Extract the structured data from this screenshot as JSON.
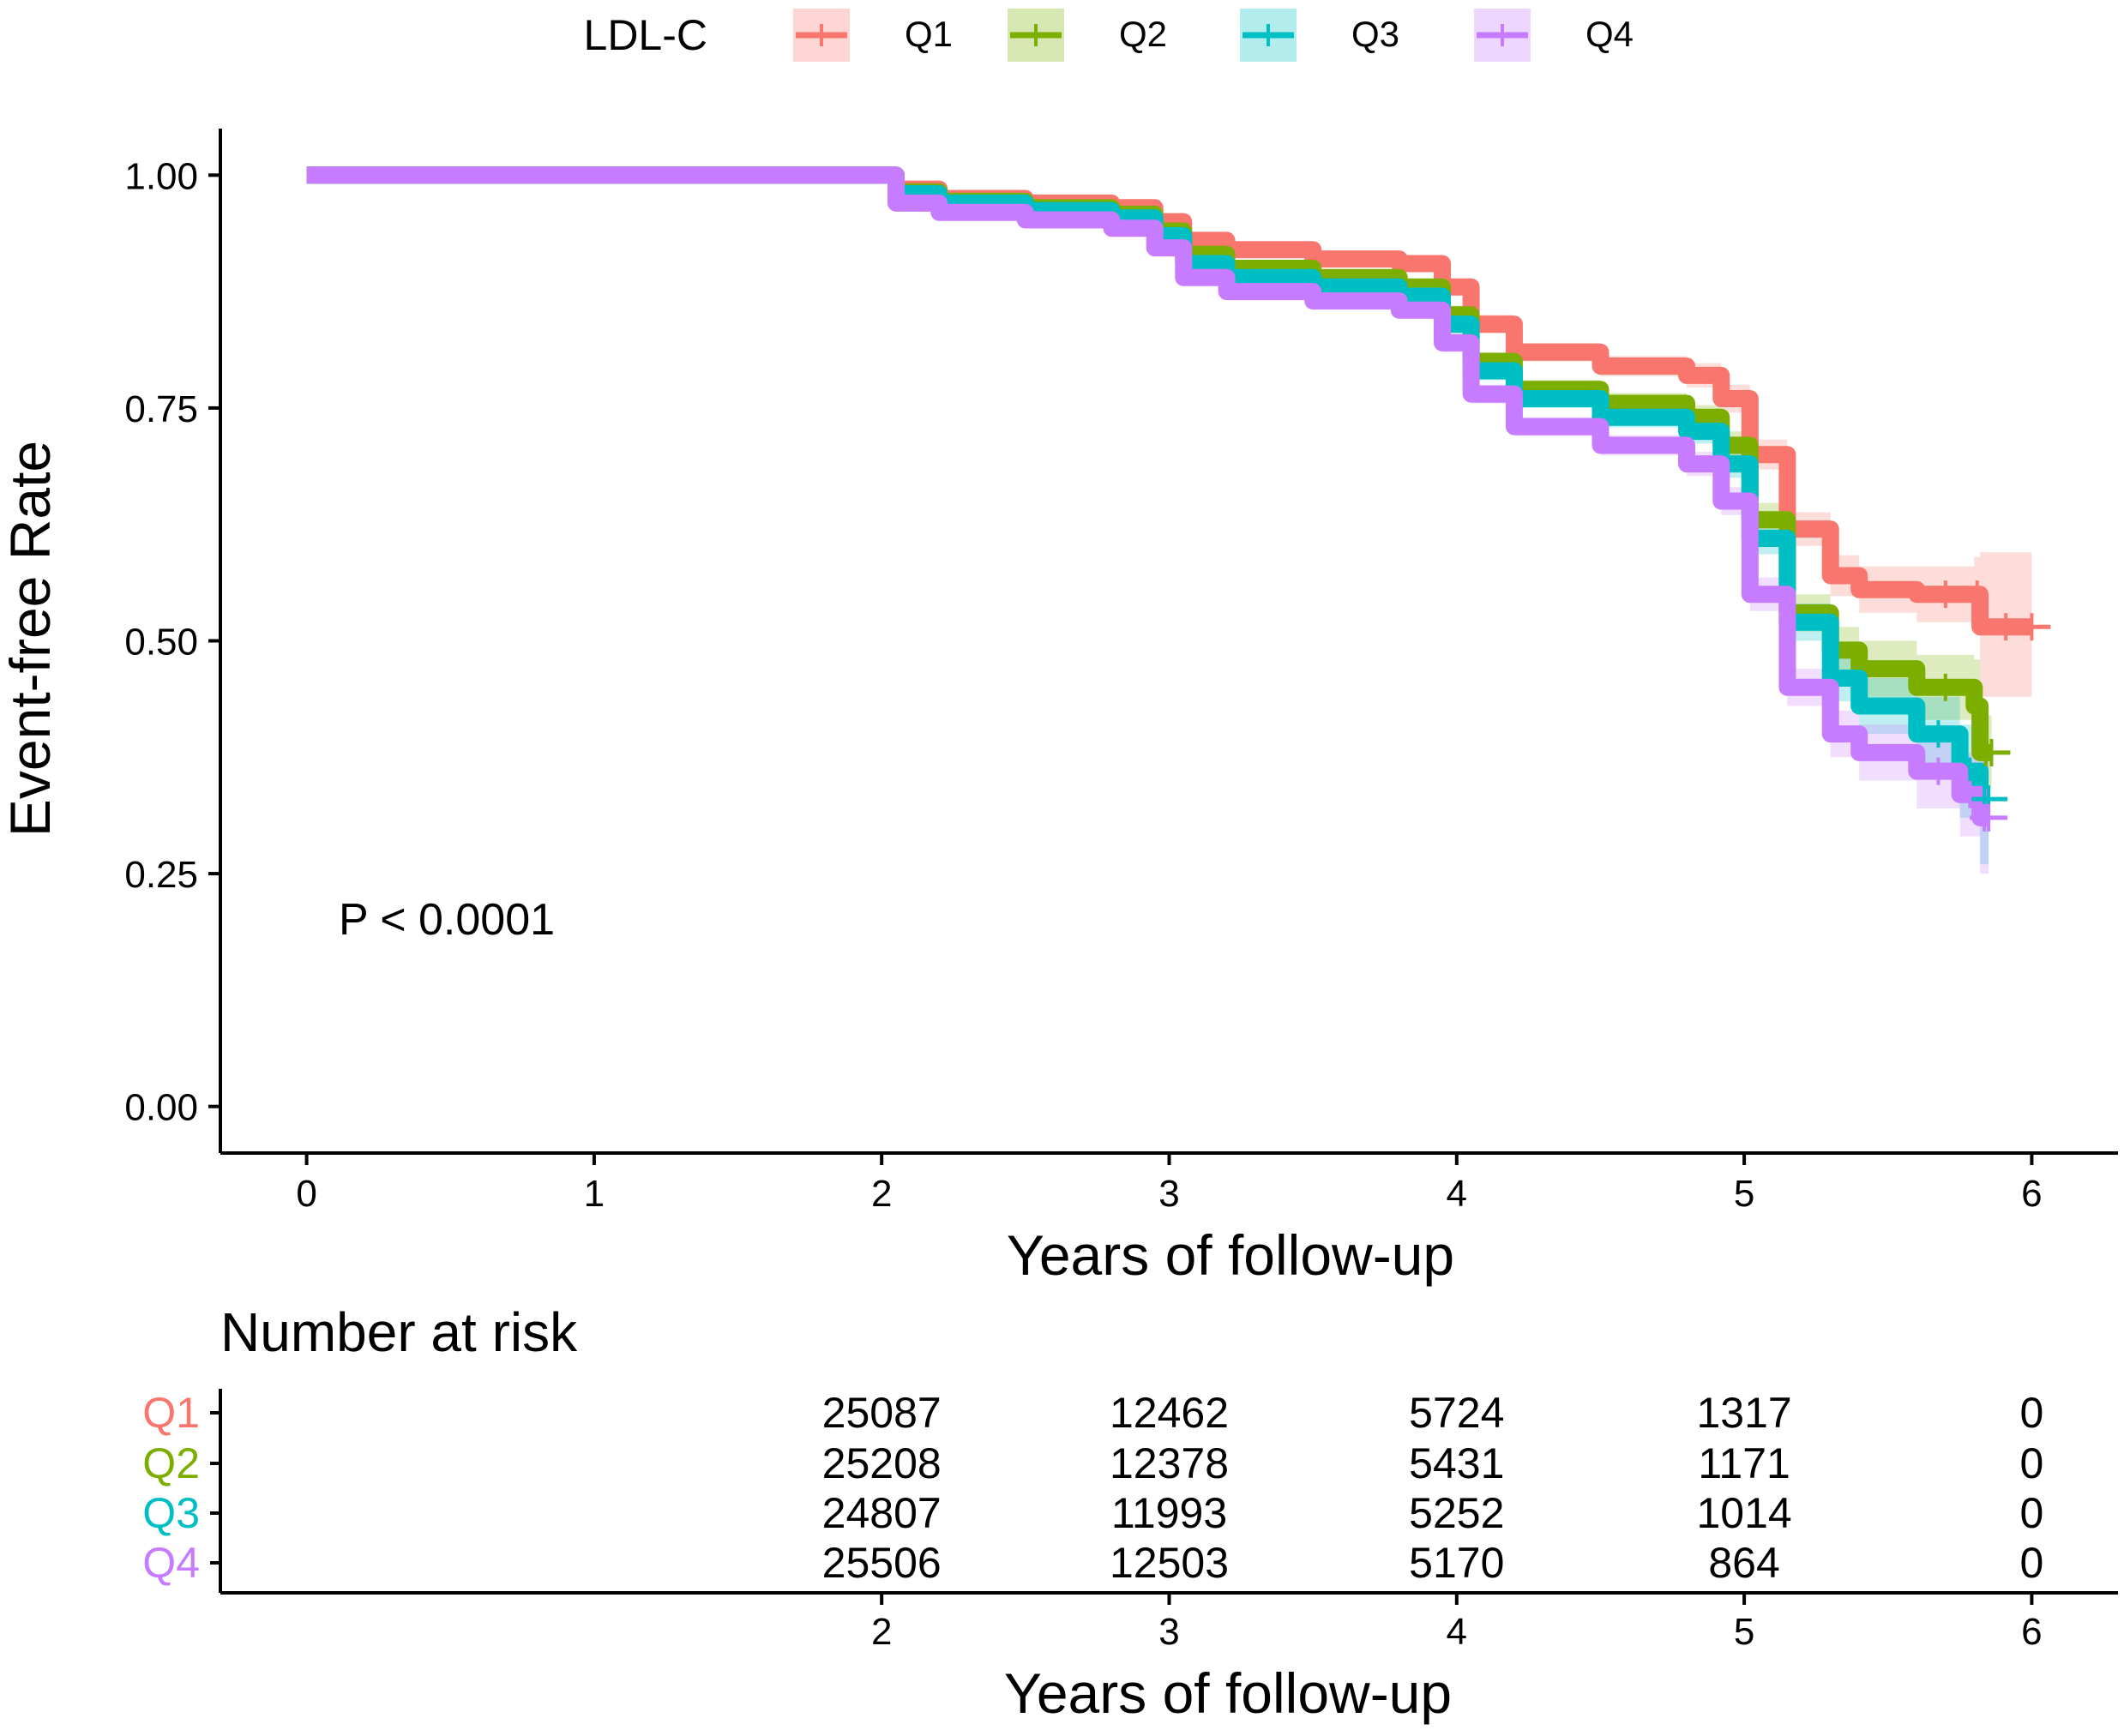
{
  "legend": {
    "title": "LDL-C",
    "items": [
      {
        "label": "Q1",
        "color": "#F8766D"
      },
      {
        "label": "Q2",
        "color": "#7CAE00"
      },
      {
        "label": "Q3",
        "color": "#00BFC4"
      },
      {
        "label": "Q4",
        "color": "#C77CFF"
      }
    ]
  },
  "annotation": "P < 0.0001",
  "chart_data": [
    {
      "type": "line",
      "subtype": "kaplan-meier",
      "title": "",
      "xlabel": "Years of follow-up",
      "ylabel": "Event-free Rate",
      "xlim": [
        -0.3,
        6.3
      ],
      "ylim": [
        -0.05,
        1.05
      ],
      "x_ticks": [
        "0",
        "1",
        "2",
        "3",
        "4",
        "5",
        "6"
      ],
      "y_ticks": [
        "0.00",
        "0.25",
        "0.50",
        "0.75",
        "1.00"
      ],
      "legend_position": "top",
      "series": [
        {
          "name": "Q1",
          "color": "#F8766D",
          "x": [
            0,
            2.0,
            2.05,
            2.2,
            2.5,
            2.8,
            2.95,
            3.05,
            3.2,
            3.5,
            3.8,
            3.95,
            4.05,
            4.2,
            4.5,
            4.8,
            4.92,
            5.02,
            5.15,
            5.3,
            5.4,
            5.6,
            5.8,
            5.82,
            6.0
          ],
          "y": [
            1.0,
            1.0,
            0.985,
            0.975,
            0.97,
            0.965,
            0.95,
            0.93,
            0.92,
            0.91,
            0.905,
            0.88,
            0.84,
            0.81,
            0.795,
            0.785,
            0.76,
            0.7,
            0.62,
            0.57,
            0.555,
            0.55,
            0.55,
            0.515,
            0.515
          ],
          "ci_low": [
            1.0,
            1.0,
            0.983,
            0.972,
            0.966,
            0.96,
            0.944,
            0.924,
            0.914,
            0.903,
            0.897,
            0.871,
            0.83,
            0.8,
            0.784,
            0.772,
            0.745,
            0.684,
            0.602,
            0.548,
            0.53,
            0.52,
            0.51,
            0.44,
            0.44
          ],
          "ci_high": [
            1.0,
            1.0,
            0.987,
            0.978,
            0.974,
            0.97,
            0.956,
            0.936,
            0.926,
            0.917,
            0.913,
            0.889,
            0.85,
            0.82,
            0.806,
            0.798,
            0.775,
            0.716,
            0.638,
            0.592,
            0.58,
            0.58,
            0.59,
            0.595,
            0.595
          ]
        },
        {
          "name": "Q2",
          "color": "#7CAE00",
          "x": [
            0,
            2.0,
            2.05,
            2.2,
            2.5,
            2.8,
            2.95,
            3.05,
            3.2,
            3.5,
            3.8,
            3.95,
            4.05,
            4.2,
            4.5,
            4.8,
            4.92,
            5.02,
            5.15,
            5.3,
            5.4,
            5.6,
            5.8,
            5.82,
            5.86
          ],
          "y": [
            1.0,
            1.0,
            0.982,
            0.972,
            0.965,
            0.958,
            0.94,
            0.915,
            0.9,
            0.89,
            0.88,
            0.85,
            0.8,
            0.77,
            0.755,
            0.74,
            0.71,
            0.63,
            0.53,
            0.49,
            0.47,
            0.45,
            0.43,
            0.38,
            0.38
          ],
          "ci_low": [
            1.0,
            1.0,
            0.98,
            0.969,
            0.961,
            0.953,
            0.934,
            0.909,
            0.893,
            0.882,
            0.871,
            0.84,
            0.79,
            0.76,
            0.744,
            0.727,
            0.695,
            0.612,
            0.51,
            0.465,
            0.44,
            0.415,
            0.39,
            0.34,
            0.34
          ],
          "ci_high": [
            1.0,
            1.0,
            0.984,
            0.975,
            0.969,
            0.963,
            0.946,
            0.921,
            0.907,
            0.898,
            0.889,
            0.86,
            0.81,
            0.78,
            0.766,
            0.753,
            0.725,
            0.648,
            0.55,
            0.515,
            0.5,
            0.485,
            0.48,
            0.42,
            0.42
          ]
        },
        {
          "name": "Q3",
          "color": "#00BFC4",
          "x": [
            0,
            2.0,
            2.05,
            2.2,
            2.5,
            2.8,
            2.95,
            3.05,
            3.2,
            3.5,
            3.8,
            3.95,
            4.05,
            4.2,
            4.5,
            4.8,
            4.92,
            5.02,
            5.15,
            5.3,
            5.4,
            5.6,
            5.75,
            5.82,
            5.85
          ],
          "y": [
            1.0,
            1.0,
            0.98,
            0.97,
            0.962,
            0.954,
            0.935,
            0.905,
            0.89,
            0.88,
            0.87,
            0.84,
            0.79,
            0.76,
            0.74,
            0.725,
            0.69,
            0.61,
            0.52,
            0.46,
            0.43,
            0.4,
            0.36,
            0.33,
            0.33
          ],
          "ci_low": [
            1.0,
            1.0,
            0.978,
            0.967,
            0.958,
            0.949,
            0.929,
            0.899,
            0.883,
            0.872,
            0.861,
            0.83,
            0.78,
            0.75,
            0.729,
            0.712,
            0.675,
            0.593,
            0.5,
            0.435,
            0.4,
            0.36,
            0.31,
            0.26,
            0.26
          ],
          "ci_high": [
            1.0,
            1.0,
            0.982,
            0.973,
            0.966,
            0.959,
            0.941,
            0.911,
            0.897,
            0.888,
            0.879,
            0.85,
            0.8,
            0.77,
            0.751,
            0.738,
            0.705,
            0.627,
            0.54,
            0.485,
            0.46,
            0.44,
            0.41,
            0.4,
            0.4
          ]
        },
        {
          "name": "Q4",
          "color": "#C77CFF",
          "x": [
            0,
            2.0,
            2.05,
            2.2,
            2.5,
            2.8,
            2.95,
            3.05,
            3.2,
            3.5,
            3.8,
            3.95,
            4.05,
            4.2,
            4.5,
            4.8,
            4.92,
            5.02,
            5.15,
            5.3,
            5.4,
            5.6,
            5.75,
            5.82,
            5.85
          ],
          "y": [
            1.0,
            1.0,
            0.97,
            0.96,
            0.952,
            0.943,
            0.922,
            0.89,
            0.875,
            0.865,
            0.855,
            0.82,
            0.765,
            0.73,
            0.71,
            0.69,
            0.65,
            0.55,
            0.45,
            0.4,
            0.38,
            0.36,
            0.335,
            0.31,
            0.31
          ],
          "ci_low": [
            1.0,
            1.0,
            0.968,
            0.957,
            0.948,
            0.938,
            0.916,
            0.884,
            0.868,
            0.857,
            0.846,
            0.81,
            0.755,
            0.72,
            0.699,
            0.677,
            0.635,
            0.532,
            0.43,
            0.375,
            0.35,
            0.32,
            0.29,
            0.25,
            0.25
          ],
          "ci_high": [
            1.0,
            1.0,
            0.972,
            0.963,
            0.956,
            0.948,
            0.928,
            0.896,
            0.882,
            0.873,
            0.864,
            0.83,
            0.775,
            0.74,
            0.721,
            0.703,
            0.665,
            0.568,
            0.47,
            0.425,
            0.41,
            0.4,
            0.38,
            0.37,
            0.37
          ]
        }
      ]
    },
    {
      "type": "table",
      "title": "Number at risk",
      "xlabel": "Years of follow-up",
      "columns": [
        "2",
        "3",
        "4",
        "5",
        "6"
      ],
      "rows": [
        {
          "label": "Q1",
          "color": "#F8766D",
          "values": [
            "25087",
            "12462",
            "5724",
            "1317",
            "0"
          ]
        },
        {
          "label": "Q2",
          "color": "#7CAE00",
          "values": [
            "25208",
            "12378",
            "5431",
            "1171",
            "0"
          ]
        },
        {
          "label": "Q3",
          "color": "#00BFC4",
          "values": [
            "24807",
            "11993",
            "5252",
            "1014",
            "0"
          ]
        },
        {
          "label": "Q4",
          "color": "#C77CFF",
          "values": [
            "25506",
            "12503",
            "5170",
            "864",
            "0"
          ]
        }
      ]
    }
  ]
}
